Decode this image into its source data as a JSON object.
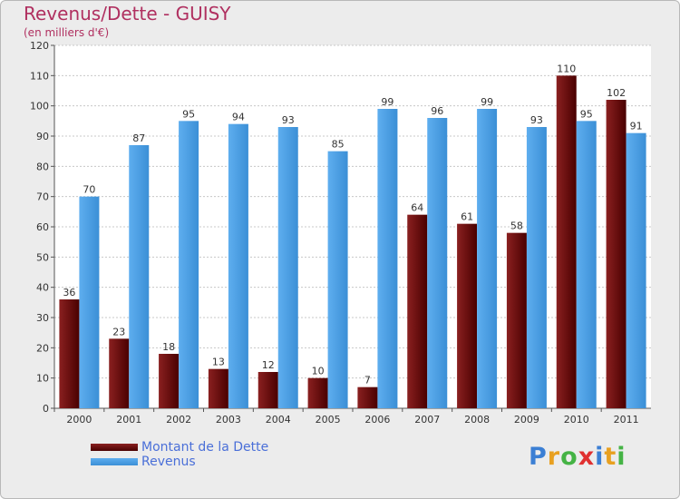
{
  "header": {
    "title": "Revenus/Dette - GUISY",
    "subtitle": "(en milliers d'€)"
  },
  "legend": {
    "items": [
      {
        "label": "Montant de la Dette",
        "color": "#6b0a0a"
      },
      {
        "label": "Revenus",
        "color": "#4fa3e6"
      }
    ]
  },
  "logo": {
    "text": "Proxiti",
    "colors": [
      "#3b7fd4",
      "#e8a020",
      "#45b345",
      "#e03030",
      "#3b7fd4",
      "#e8a020",
      "#45b345"
    ]
  },
  "chart_data": {
    "type": "bar",
    "title": "Revenus/Dette - GUISY",
    "subtitle": "(en milliers d'€)",
    "categories": [
      "2000",
      "2001",
      "2002",
      "2003",
      "2004",
      "2005",
      "2006",
      "2007",
      "2008",
      "2009",
      "2010",
      "2011"
    ],
    "series": [
      {
        "name": "Montant de la Dette",
        "color": "#6b0a0a",
        "values": [
          36,
          23,
          18,
          13,
          12,
          10,
          7,
          64,
          61,
          58,
          110,
          102
        ]
      },
      {
        "name": "Revenus",
        "color": "#4fa3e6",
        "values": [
          70,
          87,
          95,
          94,
          93,
          85,
          99,
          96,
          99,
          93,
          95,
          91
        ]
      }
    ],
    "ylim": [
      0,
      120
    ],
    "yticks": [
      0,
      10,
      20,
      30,
      40,
      50,
      60,
      70,
      80,
      90,
      100,
      110,
      120
    ],
    "grid": true,
    "legend_position": "bottom-left"
  }
}
